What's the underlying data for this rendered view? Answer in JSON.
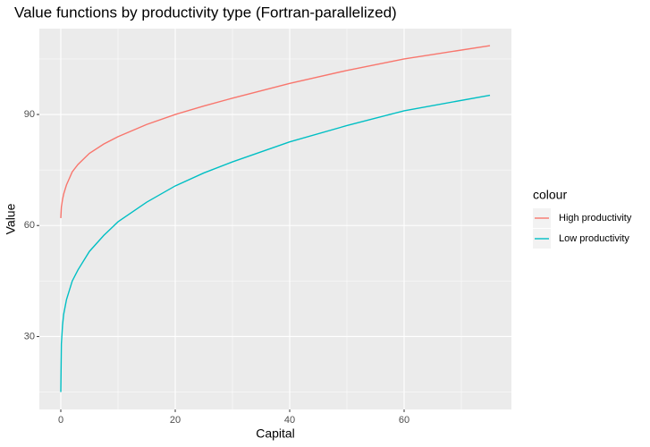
{
  "chart_data": {
    "type": "line",
    "title": "Value functions by productivity type (Fortran-parallelized)",
    "x_label": "Capital",
    "y_label": "Value",
    "legend_title": "colour",
    "legend_position": "right",
    "x": [
      0,
      0.1,
      0.3,
      0.5,
      1,
      2,
      3,
      5,
      7.5,
      10,
      15,
      20,
      25,
      30,
      40,
      50,
      60,
      75
    ],
    "series": [
      {
        "name": "High productivity",
        "color": "#f8766d",
        "values": [
          62,
          65,
          67,
          68.5,
          71,
          74.5,
          76.5,
          79.5,
          82,
          84,
          87.3,
          90,
          92.3,
          94.4,
          98.4,
          101.9,
          105,
          108.6
        ]
      },
      {
        "name": "Low productivity",
        "color": "#00bfc4",
        "values": [
          15,
          28,
          33,
          36,
          40,
          45,
          48,
          53,
          57.3,
          61,
          66.3,
          70.7,
          74.2,
          77.2,
          82.6,
          87,
          91,
          95.2
        ]
      }
    ],
    "xlim": [
      -3.75,
      78.75
    ],
    "xticks": [
      0,
      20,
      40,
      60
    ],
    "x_minor_breaks": [
      10,
      30,
      50,
      70
    ],
    "ylim": [
      10.3,
      113.2
    ],
    "yticks": [
      30,
      60,
      90
    ],
    "y_minor_breaks": [
      15,
      45,
      75,
      105
    ],
    "grid": true
  }
}
